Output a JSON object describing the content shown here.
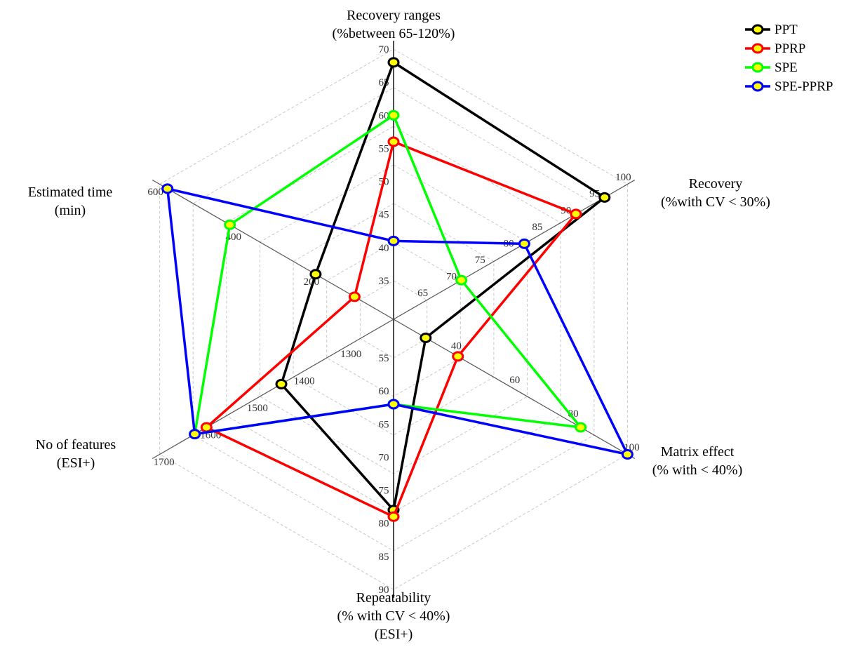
{
  "chart_data": {
    "type": "radar",
    "title": "",
    "axes": [
      {
        "label_lines": [
          "Recovery ranges",
          "(%between 65-120%)"
        ],
        "ticks": [
          "35",
          "40",
          "45",
          "50",
          "55",
          "60",
          "65",
          "70"
        ],
        "range": [
          35,
          70
        ],
        "zero_ring": 1
      },
      {
        "label_lines": [
          "Recovery",
          "(%with CV < 30%)"
        ],
        "ticks": [
          "65",
          "70",
          "75",
          "80",
          "85",
          "90",
          "95",
          "100"
        ],
        "range": [
          65,
          100
        ],
        "zero_ring": 1
      },
      {
        "label_lines": [
          "Matrix effect",
          "(% with < 40%)"
        ],
        "ticks": [
          "40",
          "60",
          "80",
          "100"
        ],
        "range": [
          20,
          100
        ],
        "zero_ring": 0
      },
      {
        "label_lines": [
          "Repeatability",
          "(% with CV < 40%)",
          "(ESI+)"
        ],
        "ticks": [
          "55",
          "60",
          "65",
          "70",
          "75",
          "80",
          "85",
          "90"
        ],
        "range": [
          55,
          90
        ],
        "zero_ring": 1
      },
      {
        "label_lines": [
          "No of features",
          "(ESI+)"
        ],
        "ticks": [
          "1300",
          "1400",
          "1500",
          "1600",
          "1700"
        ],
        "range": [
          1200,
          1700
        ],
        "zero_ring": 0
      },
      {
        "label_lines": [
          "Estimated time",
          "(min)"
        ],
        "ticks": [
          "200",
          "400",
          "600"
        ],
        "range": [
          0,
          600
        ],
        "zero_ring": 0
      }
    ],
    "series": [
      {
        "name": "PPT",
        "color": "#000000",
        "values": [
          68,
          96,
          31,
          78,
          1440,
          200
        ]
      },
      {
        "name": "PPRP",
        "color": "#ff0000",
        "values": [
          56,
          91,
          42,
          79,
          1600,
          100
        ]
      },
      {
        "name": "SPE",
        "color": "#00ff00",
        "values": [
          60,
          71,
          84,
          62,
          1625,
          420
        ]
      },
      {
        "name": "SPE-PPRP",
        "color": "#0000ff",
        "values": [
          41,
          82,
          100,
          62,
          1625,
          580
        ]
      }
    ],
    "legend_position": "top-right",
    "grid": true
  }
}
